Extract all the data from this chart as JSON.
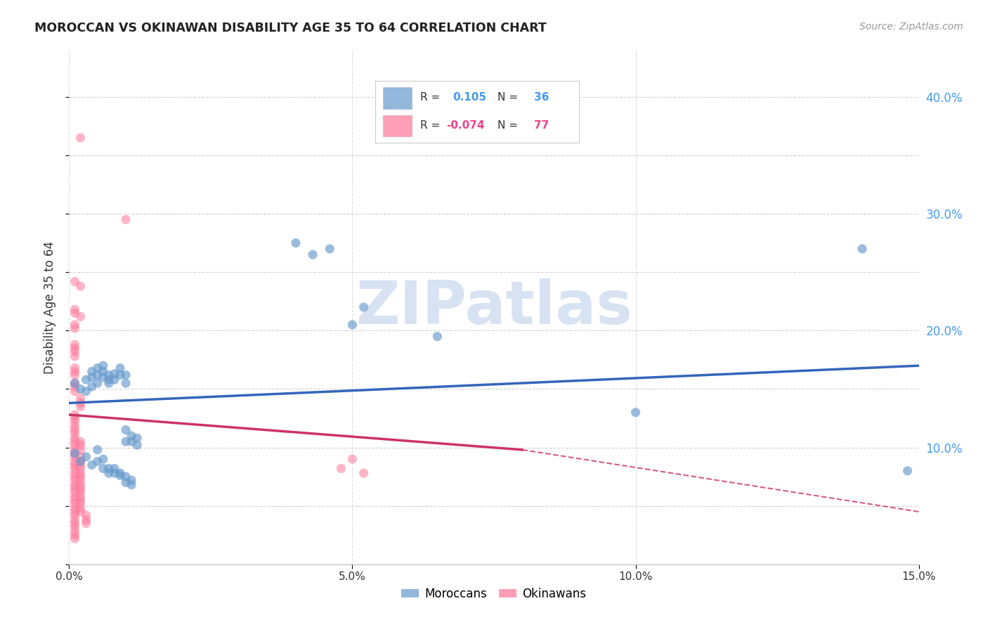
{
  "title": "MOROCCAN VS OKINAWAN DISABILITY AGE 35 TO 64 CORRELATION CHART",
  "source": "Source: ZipAtlas.com",
  "ylabel": "Disability Age 35 to 64",
  "xlim": [
    0.0,
    0.15
  ],
  "ylim": [
    0.0,
    0.44
  ],
  "xticks": [
    0.0,
    0.05,
    0.1,
    0.15
  ],
  "xtick_labels": [
    "0.0%",
    "5.0%",
    "10.0%",
    "15.0%"
  ],
  "yticks_right": [
    0.1,
    0.2,
    0.3,
    0.4
  ],
  "ytick_labels_right": [
    "10.0%",
    "20.0%",
    "30.0%",
    "40.0%"
  ],
  "moroccan_scatter": [
    [
      0.001,
      0.155
    ],
    [
      0.002,
      0.15
    ],
    [
      0.003,
      0.148
    ],
    [
      0.003,
      0.158
    ],
    [
      0.004,
      0.152
    ],
    [
      0.004,
      0.16
    ],
    [
      0.004,
      0.165
    ],
    [
      0.005,
      0.155
    ],
    [
      0.005,
      0.162
    ],
    [
      0.005,
      0.168
    ],
    [
      0.006,
      0.16
    ],
    [
      0.006,
      0.165
    ],
    [
      0.006,
      0.17
    ],
    [
      0.007,
      0.158
    ],
    [
      0.007,
      0.162
    ],
    [
      0.007,
      0.155
    ],
    [
      0.008,
      0.163
    ],
    [
      0.008,
      0.158
    ],
    [
      0.009,
      0.162
    ],
    [
      0.009,
      0.168
    ],
    [
      0.01,
      0.155
    ],
    [
      0.01,
      0.162
    ],
    [
      0.01,
      0.115
    ],
    [
      0.01,
      0.105
    ],
    [
      0.011,
      0.11
    ],
    [
      0.011,
      0.105
    ],
    [
      0.012,
      0.108
    ],
    [
      0.012,
      0.102
    ],
    [
      0.04,
      0.275
    ],
    [
      0.043,
      0.265
    ],
    [
      0.046,
      0.27
    ],
    [
      0.05,
      0.205
    ],
    [
      0.052,
      0.22
    ],
    [
      0.065,
      0.195
    ],
    [
      0.1,
      0.13
    ],
    [
      0.14,
      0.27
    ],
    [
      0.148,
      0.08
    ],
    [
      0.001,
      0.095
    ],
    [
      0.002,
      0.088
    ],
    [
      0.003,
      0.092
    ],
    [
      0.004,
      0.085
    ],
    [
      0.005,
      0.098
    ],
    [
      0.005,
      0.088
    ],
    [
      0.006,
      0.09
    ],
    [
      0.006,
      0.082
    ],
    [
      0.007,
      0.082
    ],
    [
      0.007,
      0.078
    ],
    [
      0.008,
      0.078
    ],
    [
      0.008,
      0.082
    ],
    [
      0.009,
      0.076
    ],
    [
      0.009,
      0.078
    ],
    [
      0.01,
      0.075
    ],
    [
      0.01,
      0.07
    ],
    [
      0.011,
      0.072
    ],
    [
      0.011,
      0.068
    ]
  ],
  "okinawan_scatter": [
    [
      0.002,
      0.365
    ],
    [
      0.01,
      0.295
    ],
    [
      0.001,
      0.242
    ],
    [
      0.002,
      0.238
    ],
    [
      0.001,
      0.218
    ],
    [
      0.001,
      0.215
    ],
    [
      0.002,
      0.212
    ],
    [
      0.001,
      0.205
    ],
    [
      0.001,
      0.202
    ],
    [
      0.001,
      0.188
    ],
    [
      0.001,
      0.185
    ],
    [
      0.001,
      0.182
    ],
    [
      0.001,
      0.178
    ],
    [
      0.001,
      0.168
    ],
    [
      0.001,
      0.165
    ],
    [
      0.001,
      0.162
    ],
    [
      0.001,
      0.155
    ],
    [
      0.001,
      0.152
    ],
    [
      0.001,
      0.148
    ],
    [
      0.002,
      0.142
    ],
    [
      0.002,
      0.138
    ],
    [
      0.002,
      0.135
    ],
    [
      0.001,
      0.128
    ],
    [
      0.001,
      0.125
    ],
    [
      0.001,
      0.122
    ],
    [
      0.001,
      0.118
    ],
    [
      0.001,
      0.115
    ],
    [
      0.001,
      0.112
    ],
    [
      0.001,
      0.108
    ],
    [
      0.001,
      0.105
    ],
    [
      0.001,
      0.102
    ],
    [
      0.002,
      0.105
    ],
    [
      0.002,
      0.102
    ],
    [
      0.002,
      0.098
    ],
    [
      0.001,
      0.098
    ],
    [
      0.001,
      0.095
    ],
    [
      0.001,
      0.092
    ],
    [
      0.002,
      0.092
    ],
    [
      0.002,
      0.088
    ],
    [
      0.002,
      0.085
    ],
    [
      0.001,
      0.088
    ],
    [
      0.001,
      0.085
    ],
    [
      0.001,
      0.082
    ],
    [
      0.002,
      0.082
    ],
    [
      0.002,
      0.078
    ],
    [
      0.002,
      0.075
    ],
    [
      0.001,
      0.078
    ],
    [
      0.001,
      0.075
    ],
    [
      0.001,
      0.072
    ],
    [
      0.002,
      0.072
    ],
    [
      0.002,
      0.068
    ],
    [
      0.002,
      0.065
    ],
    [
      0.001,
      0.068
    ],
    [
      0.001,
      0.065
    ],
    [
      0.001,
      0.062
    ],
    [
      0.002,
      0.062
    ],
    [
      0.002,
      0.058
    ],
    [
      0.002,
      0.055
    ],
    [
      0.001,
      0.058
    ],
    [
      0.001,
      0.055
    ],
    [
      0.001,
      0.052
    ],
    [
      0.002,
      0.052
    ],
    [
      0.002,
      0.048
    ],
    [
      0.002,
      0.045
    ],
    [
      0.001,
      0.048
    ],
    [
      0.001,
      0.045
    ],
    [
      0.001,
      0.042
    ],
    [
      0.003,
      0.042
    ],
    [
      0.003,
      0.038
    ],
    [
      0.003,
      0.035
    ],
    [
      0.001,
      0.038
    ],
    [
      0.001,
      0.035
    ],
    [
      0.001,
      0.032
    ],
    [
      0.001,
      0.028
    ],
    [
      0.001,
      0.025
    ],
    [
      0.001,
      0.022
    ],
    [
      0.048,
      0.082
    ],
    [
      0.05,
      0.09
    ],
    [
      0.052,
      0.078
    ]
  ],
  "moroccan_color": "#6699cc",
  "okinawan_color": "#ff7799",
  "moroccan_alpha": 0.65,
  "okinawan_alpha": 0.55,
  "scatter_size": 90,
  "blue_line": [
    0.0,
    0.138,
    0.15,
    0.17
  ],
  "pink_line_solid": [
    0.0,
    0.128,
    0.08,
    0.098
  ],
  "pink_line_dashed": [
    0.08,
    0.098,
    0.15,
    0.045
  ],
  "watermark_text": "ZIPatlas",
  "watermark_color": "#d0ddf0",
  "grid_color": "#cccccc",
  "background_color": "#ffffff",
  "right_tick_color": "#4499ee",
  "title_color": "#222222",
  "source_color": "#999999",
  "legend_text_color": "#333333",
  "legend_r_color": "#4499ee",
  "legend_r_neg_color": "#ee4488"
}
